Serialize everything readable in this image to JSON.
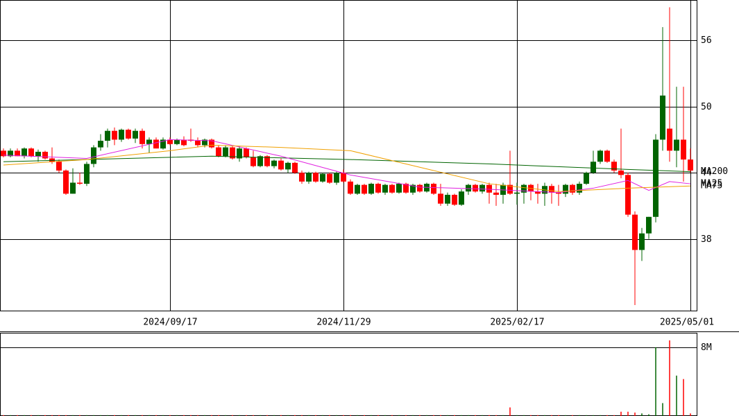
{
  "chart_data": {
    "type": "candlestick",
    "up_color": "#006400",
    "down_color": "#ff0000",
    "ylim": [
      31.5,
      59.6
    ],
    "yticks": [
      38,
      44,
      50,
      56
    ],
    "grid": true,
    "xticks": [
      {
        "value": 24,
        "label": "2024/09/17"
      },
      {
        "value": 49,
        "label": "2024/11/29"
      },
      {
        "value": 74,
        "label": "2025/02/17"
      },
      {
        "value": 99,
        "label": "2025/05/01"
      }
    ],
    "open": [
      46.0,
      45.5,
      46.0,
      45.5,
      46.2,
      45.5,
      45.9,
      45.3,
      45.0,
      44.2,
      42.1,
      43.1,
      43.0,
      44.8,
      46.3,
      46.9,
      47.8,
      47.0,
      47.9,
      47.1,
      47.8,
      46.6,
      47.0,
      46.2,
      47.0,
      46.6,
      47.0,
      47.0,
      46.9,
      46.5,
      47.0,
      46.3,
      45.5,
      46.3,
      45.3,
      46.2,
      45.4,
      44.6,
      45.5,
      44.6,
      45.1,
      44.3,
      44.9,
      44.0,
      43.2,
      44.0,
      43.2,
      43.9,
      43.1,
      44.0,
      43.2,
      42.1,
      42.9,
      42.1,
      43.0,
      42.2,
      42.9,
      42.2,
      43.0,
      42.2,
      42.9,
      42.3,
      43.0,
      42.1,
      41.2,
      42.0,
      41.1,
      42.3,
      42.9,
      42.3,
      42.9,
      42.2,
      42.0,
      42.9,
      42.1,
      42.2,
      42.9,
      42.3,
      42.1,
      42.8,
      42.2,
      42.1,
      42.9,
      42.2,
      43.0,
      44.0,
      45.0,
      46.0,
      45.0,
      44.2,
      43.8,
      40.2,
      37.0,
      38.5,
      40.0,
      47.0,
      48.0,
      46.0,
      47.0,
      45.2
    ],
    "high": [
      46.2,
      46.2,
      46.2,
      46.3,
      46.3,
      46.1,
      46.0,
      46.3,
      45.2,
      44.3,
      44.4,
      44.0,
      45.0,
      46.5,
      47.5,
      48.0,
      48.1,
      48.0,
      48.0,
      48.0,
      48.0,
      47.2,
      47.2,
      47.2,
      47.2,
      47.1,
      47.3,
      48.0,
      47.2,
      47.1,
      47.1,
      46.5,
      46.5,
      46.4,
      46.4,
      46.3,
      46.0,
      45.6,
      45.6,
      45.2,
      45.3,
      45.0,
      45.0,
      44.2,
      44.1,
      44.1,
      44.0,
      44.0,
      44.1,
      44.3,
      43.4,
      43.0,
      43.0,
      43.1,
      43.1,
      43.0,
      43.0,
      43.1,
      43.1,
      43.0,
      43.0,
      43.1,
      43.1,
      43.0,
      42.2,
      42.1,
      42.5,
      43.0,
      43.0,
      43.0,
      43.1,
      43.0,
      43.1,
      46.0,
      43.1,
      43.0,
      43.0,
      43.0,
      43.1,
      43.0,
      42.9,
      43.0,
      43.0,
      43.2,
      44.1,
      46.0,
      46.1,
      46.1,
      45.2,
      48.0,
      44.0,
      40.5,
      39.0,
      40.0,
      47.5,
      57.2,
      59.0,
      51.8,
      51.8,
      46.2
    ],
    "low": [
      45.4,
      45.4,
      45.5,
      45.3,
      45.4,
      45.0,
      45.2,
      44.8,
      44.0,
      42.0,
      42.1,
      42.9,
      42.8,
      44.5,
      46.0,
      46.3,
      46.5,
      46.8,
      47.0,
      46.7,
      46.2,
      45.8,
      46.2,
      46.1,
      46.5,
      46.5,
      46.4,
      46.8,
      46.3,
      46.3,
      46.2,
      45.4,
      45.4,
      45.2,
      45.0,
      45.3,
      44.5,
      44.5,
      44.5,
      44.4,
      44.2,
      44.0,
      43.9,
      43.0,
      43.0,
      43.1,
      43.1,
      43.0,
      42.9,
      43.1,
      42.0,
      42.0,
      42.0,
      42.0,
      42.1,
      42.0,
      42.1,
      42.1,
      42.1,
      42.0,
      42.2,
      42.2,
      42.0,
      41.0,
      41.0,
      41.0,
      41.0,
      42.0,
      42.2,
      42.1,
      41.2,
      41.0,
      41.2,
      42.0,
      41.1,
      41.2,
      41.5,
      41.2,
      41.0,
      41.2,
      41.0,
      41.8,
      42.0,
      42.0,
      42.9,
      43.9,
      44.8,
      44.9,
      44.0,
      43.5,
      40.0,
      32.0,
      36.0,
      38.0,
      39.5,
      46.0,
      45.0,
      44.5,
      43.2,
      44.0
    ],
    "close": [
      45.5,
      46.0,
      45.5,
      46.2,
      45.5,
      45.9,
      45.3,
      45.0,
      44.2,
      42.1,
      43.1,
      43.0,
      44.8,
      46.3,
      46.9,
      47.8,
      47.0,
      47.9,
      47.1,
      47.8,
      46.6,
      47.0,
      46.2,
      47.0,
      46.6,
      47.0,
      46.5,
      46.9,
      46.5,
      47.0,
      46.3,
      45.5,
      46.3,
      45.3,
      46.2,
      45.4,
      44.6,
      45.5,
      44.6,
      45.1,
      44.3,
      44.9,
      44.0,
      43.2,
      44.0,
      43.2,
      43.9,
      43.1,
      44.0,
      43.2,
      42.1,
      42.9,
      42.1,
      43.0,
      42.2,
      42.9,
      42.2,
      43.0,
      42.2,
      42.9,
      42.3,
      43.0,
      42.1,
      41.2,
      42.0,
      41.1,
      42.3,
      42.9,
      42.3,
      42.9,
      42.2,
      42.0,
      42.9,
      42.1,
      42.2,
      42.9,
      42.3,
      42.1,
      42.8,
      42.2,
      42.1,
      42.9,
      42.2,
      43.0,
      44.0,
      45.0,
      46.0,
      45.0,
      44.2,
      43.8,
      40.2,
      37.0,
      38.5,
      40.0,
      47.0,
      51.0,
      46.0,
      47.0,
      45.2,
      44.2
    ],
    "ma": [
      {
        "name": "MA200",
        "color": "#006400",
        "x": [
          0,
          30,
          50,
          70,
          90,
          99
        ],
        "values": [
          45.0,
          45.5,
          45.2,
          44.8,
          44.3,
          44.1
        ]
      },
      {
        "name": "MA25",
        "color": "#e020e0",
        "x": [
          0,
          12,
          24,
          30,
          40,
          50,
          60,
          70,
          80,
          85,
          90,
          93,
          96,
          99
        ],
        "values": [
          45.6,
          45.3,
          47.0,
          46.9,
          45.5,
          43.8,
          42.7,
          42.5,
          42.2,
          42.6,
          43.3,
          42.4,
          43.2,
          43.0
        ]
      },
      {
        "name": "MA75",
        "color": "#f0a000",
        "x": [
          0,
          12,
          24,
          30,
          40,
          50,
          60,
          70,
          80,
          90,
          99
        ],
        "values": [
          44.7,
          45.2,
          46.0,
          46.5,
          46.3,
          46.0,
          44.5,
          43.0,
          42.3,
          42.6,
          42.8
        ]
      }
    ],
    "volume": {
      "ylim": [
        0,
        9600000
      ],
      "yticks": [
        {
          "value": 8000000,
          "label": "8M"
        }
      ],
      "values": [
        100000,
        100000,
        100000,
        100000,
        100000,
        100000,
        100000,
        100000,
        100000,
        100000,
        100000,
        100000,
        100000,
        100000,
        100000,
        100000,
        100000,
        100000,
        100000,
        100000,
        100000,
        100000,
        100000,
        100000,
        100000,
        100000,
        100000,
        100000,
        100000,
        100000,
        100000,
        100000,
        100000,
        100000,
        100000,
        100000,
        100000,
        100000,
        100000,
        100000,
        100000,
        100000,
        100000,
        100000,
        100000,
        100000,
        100000,
        100000,
        100000,
        100000,
        100000,
        100000,
        100000,
        100000,
        100000,
        100000,
        100000,
        100000,
        100000,
        100000,
        100000,
        100000,
        100000,
        100000,
        100000,
        100000,
        100000,
        100000,
        100000,
        100000,
        100000,
        100000,
        100000,
        1000000,
        100000,
        100000,
        100000,
        100000,
        100000,
        100000,
        100000,
        100000,
        100000,
        100000,
        100000,
        100000,
        100000,
        100000,
        100000,
        500000,
        500000,
        400000,
        300000,
        200000,
        8000000,
        1500000,
        8800000,
        4700000,
        4300000,
        300000
      ]
    }
  }
}
